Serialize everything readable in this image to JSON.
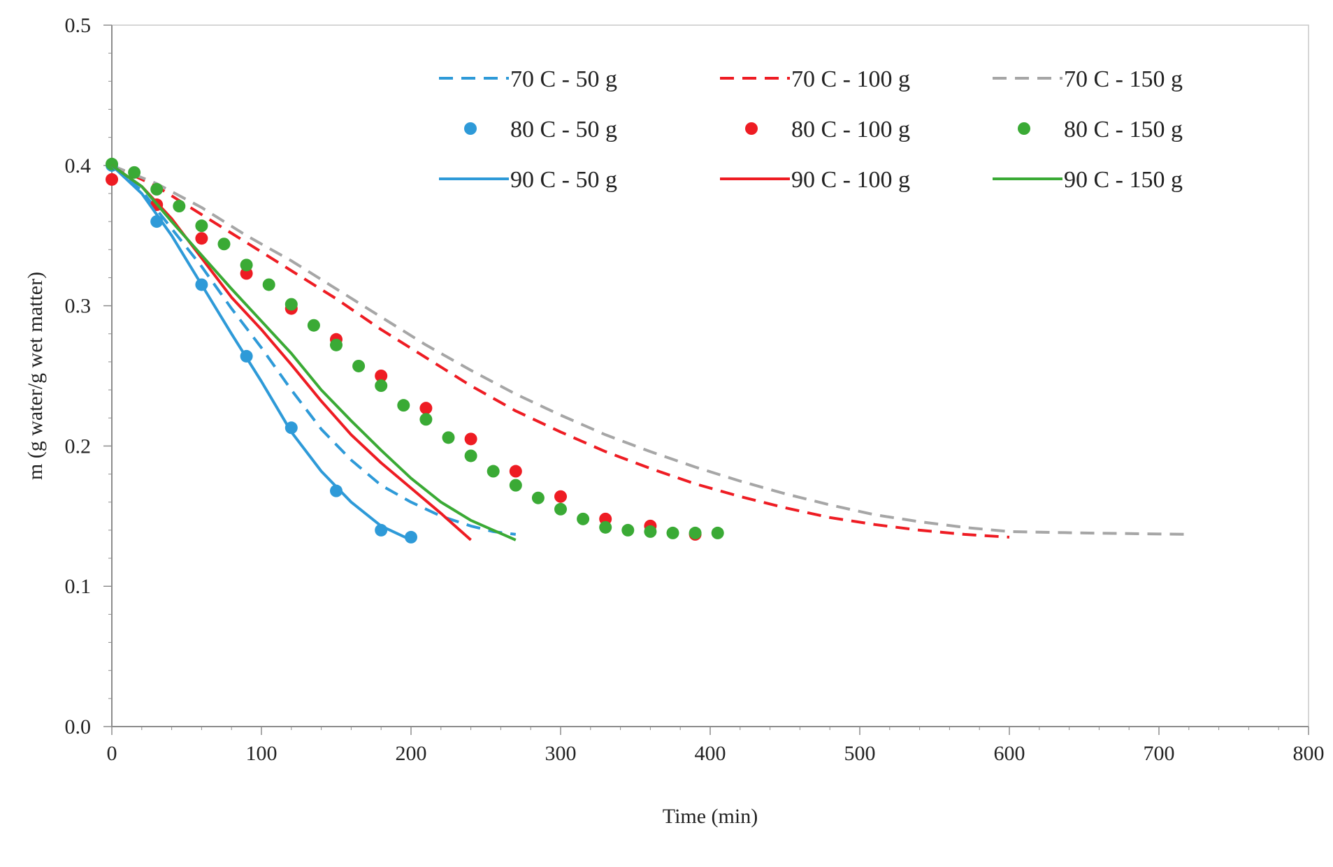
{
  "chart_data": {
    "type": "line",
    "title": "",
    "xlabel": "Time (min)",
    "ylabel": "m (g water/g wet matter)",
    "xlim": [
      0,
      800
    ],
    "ylim": [
      0.0,
      0.5
    ],
    "x_ticks": [
      {
        "value": 0,
        "label": "0"
      },
      {
        "value": 100,
        "label": "100"
      },
      {
        "value": 200,
        "label": "200"
      },
      {
        "value": 300,
        "label": "300"
      },
      {
        "value": 400,
        "label": "400"
      },
      {
        "value": 500,
        "label": "500"
      },
      {
        "value": 600,
        "label": "600"
      },
      {
        "value": 700,
        "label": "700"
      },
      {
        "value": 800,
        "label": "800"
      }
    ],
    "y_ticks": [
      {
        "value": 0.0,
        "label": "0.0"
      },
      {
        "value": 0.1,
        "label": "0.1"
      },
      {
        "value": 0.2,
        "label": "0.2"
      },
      {
        "value": 0.3,
        "label": "0.3"
      },
      {
        "value": 0.4,
        "label": "0.4"
      },
      {
        "value": 0.5,
        "label": "0.5"
      }
    ],
    "grid": false,
    "legend_position": "top-right",
    "series": [
      {
        "key": "s70-50",
        "name": "70 C - 50 g",
        "style": "dashed",
        "color": "#2E9AD8",
        "x": [
          0,
          20,
          40,
          60,
          80,
          100,
          120,
          140,
          160,
          180,
          200,
          220,
          240,
          255,
          270
        ],
        "y": [
          0.4,
          0.382,
          0.355,
          0.328,
          0.298,
          0.27,
          0.24,
          0.212,
          0.19,
          0.172,
          0.16,
          0.15,
          0.143,
          0.139,
          0.137
        ]
      },
      {
        "key": "s70-100",
        "name": "70 C - 100 g",
        "style": "dashed",
        "color": "#EE1C23",
        "x": [
          0,
          30,
          60,
          90,
          120,
          150,
          180,
          210,
          240,
          270,
          300,
          330,
          360,
          390,
          420,
          450,
          480,
          510,
          540,
          570,
          600
        ],
        "y": [
          0.4,
          0.385,
          0.365,
          0.345,
          0.325,
          0.305,
          0.283,
          0.263,
          0.243,
          0.225,
          0.21,
          0.196,
          0.184,
          0.173,
          0.164,
          0.156,
          0.149,
          0.144,
          0.14,
          0.137,
          0.135
        ]
      },
      {
        "key": "s70-150",
        "name": "70 C - 150 g",
        "style": "dashed",
        "color": "#A6A6A6",
        "x": [
          0,
          30,
          60,
          90,
          120,
          150,
          180,
          210,
          240,
          270,
          300,
          330,
          360,
          390,
          420,
          450,
          480,
          510,
          540,
          570,
          600,
          650,
          720
        ],
        "y": [
          0.4,
          0.387,
          0.37,
          0.35,
          0.332,
          0.312,
          0.292,
          0.272,
          0.254,
          0.237,
          0.222,
          0.208,
          0.196,
          0.185,
          0.175,
          0.166,
          0.158,
          0.151,
          0.146,
          0.142,
          0.139,
          0.138,
          0.137
        ]
      },
      {
        "key": "s80-50",
        "name": "80 C - 50 g",
        "style": "points",
        "color": "#2E9AD8",
        "x": [
          0,
          30,
          60,
          90,
          120,
          150,
          180,
          200
        ],
        "y": [
          0.4,
          0.36,
          0.315,
          0.264,
          0.213,
          0.168,
          0.14,
          0.135
        ]
      },
      {
        "key": "s80-100",
        "name": "80 C - 100 g",
        "style": "points",
        "color": "#EE1C23",
        "x": [
          0,
          30,
          60,
          90,
          120,
          150,
          180,
          210,
          240,
          270,
          300,
          330,
          360,
          390
        ],
        "y": [
          0.39,
          0.372,
          0.348,
          0.323,
          0.298,
          0.276,
          0.25,
          0.227,
          0.205,
          0.182,
          0.164,
          0.148,
          0.143,
          0.137
        ]
      },
      {
        "key": "s80-150",
        "name": "80 C - 150 g",
        "style": "points",
        "color": "#3AAA35",
        "x": [
          0,
          15,
          30,
          45,
          60,
          75,
          90,
          105,
          120,
          135,
          150,
          165,
          180,
          195,
          210,
          225,
          240,
          255,
          270,
          285,
          300,
          315,
          330,
          345,
          360,
          375,
          390,
          405
        ],
        "y": [
          0.401,
          0.395,
          0.383,
          0.371,
          0.357,
          0.344,
          0.329,
          0.315,
          0.301,
          0.286,
          0.272,
          0.257,
          0.243,
          0.229,
          0.219,
          0.206,
          0.193,
          0.182,
          0.172,
          0.163,
          0.155,
          0.148,
          0.142,
          0.14,
          0.139,
          0.138,
          0.138,
          0.138
        ]
      },
      {
        "key": "s90-50",
        "name": "90 C - 50 g",
        "style": "solid",
        "color": "#2E9AD8",
        "x": [
          0,
          20,
          40,
          60,
          80,
          100,
          120,
          140,
          160,
          180,
          200
        ],
        "y": [
          0.4,
          0.38,
          0.35,
          0.315,
          0.28,
          0.246,
          0.21,
          0.182,
          0.16,
          0.143,
          0.133
        ]
      },
      {
        "key": "s90-100",
        "name": "90 C - 100 g",
        "style": "solid",
        "color": "#EE1C23",
        "x": [
          0,
          20,
          40,
          60,
          80,
          100,
          120,
          140,
          160,
          180,
          200,
          220,
          240
        ],
        "y": [
          0.4,
          0.385,
          0.362,
          0.334,
          0.306,
          0.283,
          0.258,
          0.232,
          0.208,
          0.188,
          0.17,
          0.152,
          0.133
        ]
      },
      {
        "key": "s90-150",
        "name": "90 C - 150 g",
        "style": "solid",
        "color": "#3AAA35",
        "x": [
          0,
          20,
          40,
          60,
          80,
          100,
          120,
          140,
          160,
          180,
          200,
          220,
          240,
          255,
          270
        ],
        "y": [
          0.4,
          0.385,
          0.36,
          0.336,
          0.312,
          0.289,
          0.266,
          0.24,
          0.218,
          0.197,
          0.177,
          0.16,
          0.147,
          0.14,
          0.133
        ]
      }
    ]
  }
}
